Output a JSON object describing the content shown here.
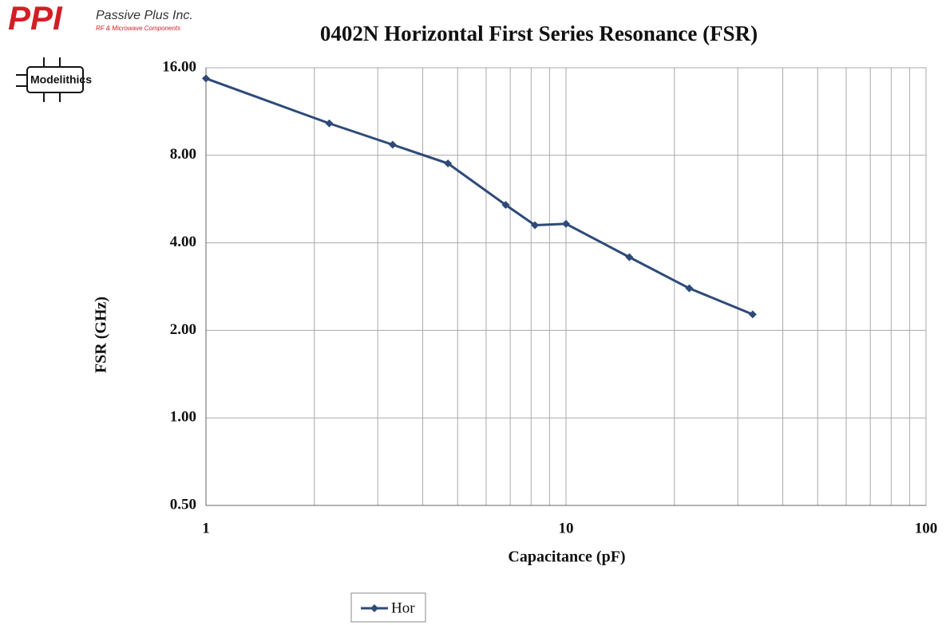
{
  "logos": {
    "ppi": "PPI",
    "ppi_name": "Passive Plus Inc.",
    "ppi_sub": "RF & Microwave Components",
    "modelithics": "Modelithics"
  },
  "chart_data": {
    "type": "line",
    "title": "0402N Horizontal First Series Resonance (FSR)",
    "xlabel": "Capacitance (pF)",
    "ylabel": "FSR (GHz)",
    "xscale": "log",
    "yscale": "log",
    "grid": true,
    "legend": "bottom",
    "xlim": [
      1,
      100
    ],
    "xticks": [
      1,
      10,
      100
    ],
    "x_minor_ticks": [
      2,
      3,
      4,
      5,
      6,
      7,
      8,
      9,
      20,
      30,
      40,
      50,
      60,
      70,
      80,
      90
    ],
    "ylim": [
      0.5,
      16
    ],
    "yticks": [
      {
        "value": 0.5,
        "label": "0.50"
      },
      {
        "value": 1,
        "label": "1.00"
      },
      {
        "value": 2,
        "label": "2.00"
      },
      {
        "value": 4,
        "label": "4.00"
      },
      {
        "value": 8,
        "label": "8.00"
      },
      {
        "value": 16,
        "label": "16.00"
      }
    ],
    "series": [
      {
        "name": "Hor",
        "color": "#2e4a78",
        "x": [
          1,
          2.2,
          3.3,
          4.7,
          6.8,
          8.2,
          10,
          15,
          22,
          33
        ],
        "values": [
          14.7,
          10.3,
          8.7,
          7.5,
          5.4,
          4.6,
          4.65,
          3.57,
          2.79,
          2.27
        ]
      }
    ]
  }
}
